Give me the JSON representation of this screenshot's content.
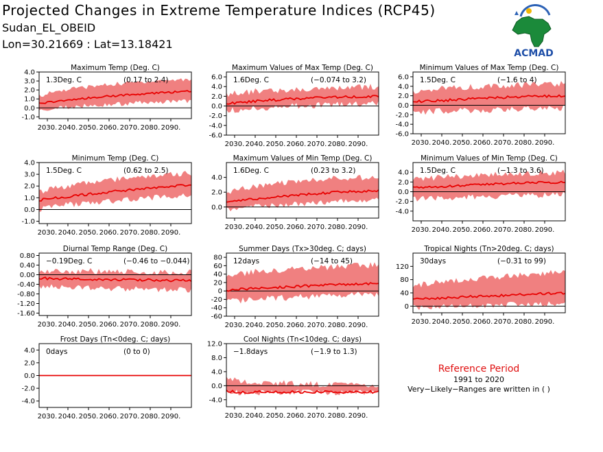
{
  "header": {
    "title": "Projected Changes in Extreme Temperature Indices (RCP45)",
    "subtitle": "Sudan_EL_OBEID",
    "location": "Lon=30.21669 : Lat=13.18421"
  },
  "logo": {
    "text": "ACMAD",
    "icon": "africa-map-logo"
  },
  "colors": {
    "band": "#f08080",
    "line": "#e80000",
    "zero_line": "#000000",
    "ref_text": "#e01010"
  },
  "reference": {
    "title": "Reference Period",
    "years": "1991 to 2020",
    "note": "Very−Likely−Ranges are written in ( )"
  },
  "chart_data": [
    {
      "type": "area",
      "title": "Maximum Temp (Deg. C)",
      "change": "1.3Deg. C",
      "range": "(0.17 to 2.4)",
      "ylim": [
        -1.2,
        4.0
      ],
      "yticks": [
        "-1.0",
        "0.0",
        "1.0",
        "2.0",
        "3.0",
        "4.0"
      ],
      "xticks": [
        "2030.",
        "2040.",
        "2050.",
        "2060.",
        "2070.",
        "2080.",
        "2090."
      ],
      "xlim": [
        2026,
        2100
      ],
      "series": [
        {
          "role": "median",
          "x": [
            2026,
            2040,
            2060,
            2080,
            2100
          ],
          "values": [
            0.5,
            0.9,
            1.3,
            1.6,
            1.9
          ]
        },
        {
          "role": "upper",
          "x": [
            2026,
            2040,
            2060,
            2080,
            2100
          ],
          "values": [
            1.4,
            2.1,
            2.6,
            3.0,
            3.2
          ]
        },
        {
          "role": "lower",
          "x": [
            2026,
            2040,
            2060,
            2080,
            2100
          ],
          "values": [
            -0.3,
            0.1,
            0.4,
            0.6,
            0.8
          ]
        }
      ]
    },
    {
      "type": "area",
      "title": "Maximum Values of Max Temp (Deg. C)",
      "change": "1.6Deg. C",
      "range": "(−0.074 to 3.2)",
      "ylim": [
        -6,
        7
      ],
      "yticks": [
        "-6.0",
        "-4.0",
        "-2.0",
        "0.0",
        "2.0",
        "4.0",
        "6.0"
      ],
      "xticks": [
        "2030.",
        "2040.",
        "2050.",
        "2060.",
        "2070.",
        "2080.",
        "2090."
      ],
      "xlim": [
        2026,
        2100
      ],
      "series": [
        {
          "role": "median",
          "x": [
            2026,
            2040,
            2060,
            2080,
            2100
          ],
          "values": [
            0.5,
            1.0,
            1.5,
            1.8,
            2.0
          ]
        },
        {
          "role": "upper",
          "x": [
            2026,
            2040,
            2060,
            2080,
            2100
          ],
          "values": [
            2.5,
            3.0,
            3.5,
            3.8,
            4.0
          ]
        },
        {
          "role": "lower",
          "x": [
            2026,
            2040,
            2060,
            2080,
            2100
          ],
          "values": [
            -1.0,
            -0.5,
            0.0,
            0.3,
            0.5
          ]
        }
      ]
    },
    {
      "type": "area",
      "title": "Minimum Values of Max Temp (Deg. C)",
      "change": "1.5Deg. C",
      "range": "(−1.6 to 4)",
      "ylim": [
        -6,
        7
      ],
      "yticks": [
        "-6.0",
        "-4.0",
        "-2.0",
        "0.0",
        "2.0",
        "4.0",
        "6.0"
      ],
      "xticks": [
        "2030.",
        "2040.",
        "2050.",
        "2060.",
        "2070.",
        "2080.",
        "2090."
      ],
      "xlim": [
        2026,
        2100
      ],
      "series": [
        {
          "role": "median",
          "x": [
            2026,
            2040,
            2060,
            2080,
            2100
          ],
          "values": [
            0.8,
            1.0,
            1.5,
            1.8,
            2.0
          ]
        },
        {
          "role": "upper",
          "x": [
            2026,
            2040,
            2060,
            2080,
            2100
          ],
          "values": [
            3.0,
            3.5,
            4.0,
            4.3,
            4.5
          ]
        },
        {
          "role": "lower",
          "x": [
            2026,
            2040,
            2060,
            2080,
            2100
          ],
          "values": [
            -1.5,
            -1.2,
            -1.0,
            -0.8,
            -0.6
          ]
        }
      ]
    },
    {
      "type": "area",
      "title": "Minimum Temp (Deg. C)",
      "change": "1.5Deg. C",
      "range": "(0.62 to 2.5)",
      "ylim": [
        -1.2,
        4.0
      ],
      "yticks": [
        "-1.0",
        "0.0",
        "1.0",
        "2.0",
        "3.0",
        "4.0"
      ],
      "xticks": [
        "2030.",
        "2040.",
        "2050.",
        "2060.",
        "2070.",
        "2080.",
        "2090."
      ],
      "xlim": [
        2026,
        2100
      ],
      "series": [
        {
          "role": "median",
          "x": [
            2026,
            2040,
            2060,
            2080,
            2100
          ],
          "values": [
            0.8,
            1.1,
            1.5,
            1.8,
            2.1
          ]
        },
        {
          "role": "upper",
          "x": [
            2026,
            2040,
            2060,
            2080,
            2100
          ],
          "values": [
            1.5,
            2.0,
            2.5,
            2.9,
            3.1
          ]
        },
        {
          "role": "lower",
          "x": [
            2026,
            2040,
            2060,
            2080,
            2100
          ],
          "values": [
            0.0,
            0.4,
            0.7,
            1.0,
            1.2
          ]
        }
      ]
    },
    {
      "type": "area",
      "title": "Maximum Values of Min Temp (Deg. C)",
      "change": "1.6Deg. C",
      "range": "(0.23 to 3.2)",
      "ylim": [
        -1.5,
        6.0
      ],
      "yticks": [
        "0.0",
        "2.0",
        "4.0"
      ],
      "xticks": [
        "2030.",
        "2040.",
        "2050.",
        "2060.",
        "2070.",
        "2080.",
        "2090."
      ],
      "xlim": [
        2026,
        2100
      ],
      "series": [
        {
          "role": "median",
          "x": [
            2026,
            2040,
            2060,
            2080,
            2100
          ],
          "values": [
            0.7,
            1.1,
            1.6,
            2.0,
            2.2
          ]
        },
        {
          "role": "upper",
          "x": [
            2026,
            2040,
            2060,
            2080,
            2100
          ],
          "values": [
            2.0,
            2.8,
            3.5,
            3.9,
            4.0
          ]
        },
        {
          "role": "lower",
          "x": [
            2026,
            2040,
            2060,
            2080,
            2100
          ],
          "values": [
            -0.3,
            0.1,
            0.4,
            0.7,
            0.9
          ]
        }
      ]
    },
    {
      "type": "area",
      "title": "Minimum Values of Min Temp (Deg. C)",
      "change": "1.5Deg. C",
      "range": "(−1.3 to 3.6)",
      "ylim": [
        -6,
        6
      ],
      "yticks": [
        "-4.0",
        "-2.0",
        "0.0",
        "2.0",
        "4.0"
      ],
      "xticks": [
        "2030.",
        "2040.",
        "2050.",
        "2060.",
        "2070.",
        "2080.",
        "2090."
      ],
      "xlim": [
        2026,
        2100
      ],
      "series": [
        {
          "role": "median",
          "x": [
            2026,
            2040,
            2060,
            2080,
            2100
          ],
          "values": [
            0.8,
            1.0,
            1.5,
            1.8,
            2.0
          ]
        },
        {
          "role": "upper",
          "x": [
            2026,
            2040,
            2060,
            2080,
            2100
          ],
          "values": [
            2.5,
            3.0,
            3.5,
            3.8,
            4.0
          ]
        },
        {
          "role": "lower",
          "x": [
            2026,
            2040,
            2060,
            2080,
            2100
          ],
          "values": [
            -1.5,
            -1.3,
            -1.0,
            -0.8,
            -0.5
          ]
        }
      ]
    },
    {
      "type": "area",
      "title": "Diurnal Temp Range (Deg. C)",
      "change": "−0.19Deg. C",
      "range": "(−0.46 to −0.044)",
      "ylim": [
        -1.7,
        0.9
      ],
      "yticks": [
        "-1.60",
        "-1.20",
        "-0.80",
        "-0.40",
        "0.00",
        "0.40",
        "0.80"
      ],
      "xticks": [
        "2030.",
        "2040.",
        "2050.",
        "2060.",
        "2070.",
        "2080.",
        "2090."
      ],
      "xlim": [
        2026,
        2100
      ],
      "series": [
        {
          "role": "median",
          "x": [
            2026,
            2040,
            2060,
            2080,
            2100
          ],
          "values": [
            -0.15,
            -0.18,
            -0.2,
            -0.22,
            -0.25
          ]
        },
        {
          "role": "upper",
          "x": [
            2026,
            2040,
            2060,
            2080,
            2100
          ],
          "values": [
            0.2,
            0.15,
            0.15,
            0.1,
            0.1
          ]
        },
        {
          "role": "lower",
          "x": [
            2026,
            2040,
            2060,
            2080,
            2100
          ],
          "values": [
            -0.5,
            -0.55,
            -0.6,
            -0.6,
            -0.65
          ]
        }
      ]
    },
    {
      "type": "area",
      "title": "Summer Days (Tx>30deg. C; days)",
      "change": "12days",
      "range": "(−14 to 45)",
      "ylim": [
        -60,
        90
      ],
      "yticks": [
        "-60",
        "-40",
        "-20",
        "0",
        "20",
        "40",
        "60",
        "80"
      ],
      "xticks": [
        "2030.",
        "2040.",
        "2050.",
        "2060.",
        "2070.",
        "2080.",
        "2090."
      ],
      "xlim": [
        2026,
        2100
      ],
      "series": [
        {
          "role": "median",
          "x": [
            2026,
            2040,
            2060,
            2080,
            2100
          ],
          "values": [
            2,
            6,
            11,
            15,
            18
          ]
        },
        {
          "role": "upper",
          "x": [
            2026,
            2040,
            2060,
            2080,
            2100
          ],
          "values": [
            35,
            45,
            52,
            58,
            62
          ]
        },
        {
          "role": "lower",
          "x": [
            2026,
            2040,
            2060,
            2080,
            2100
          ],
          "values": [
            -25,
            -20,
            -15,
            -10,
            -8
          ]
        }
      ]
    },
    {
      "type": "area",
      "title": "Tropical Nights (Tn>20deg. C; days)",
      "change": "30days",
      "range": "(−0.31 to 99)",
      "ylim": [
        -20,
        160
      ],
      "yticks": [
        "0",
        "40",
        "80",
        "120"
      ],
      "xticks": [
        "2030.",
        "2040.",
        "2050.",
        "2060.",
        "2070.",
        "2080.",
        "2090."
      ],
      "xlim": [
        2026,
        2100
      ],
      "series": [
        {
          "role": "median",
          "x": [
            2026,
            2040,
            2060,
            2080,
            2100
          ],
          "values": [
            20,
            25,
            30,
            35,
            40
          ]
        },
        {
          "role": "upper",
          "x": [
            2026,
            2040,
            2060,
            2080,
            2100
          ],
          "values": [
            60,
            75,
            85,
            95,
            105
          ]
        },
        {
          "role": "lower",
          "x": [
            2026,
            2040,
            2060,
            2080,
            2100
          ],
          "values": [
            -5,
            0,
            2,
            5,
            8
          ]
        }
      ]
    },
    {
      "type": "area",
      "title": "Frost Days (Tn<0deg. C; days)",
      "change": "0days",
      "range": "(0 to 0)",
      "ylim": [
        -5,
        5
      ],
      "yticks": [
        "-4.0",
        "-2.0",
        "0.0",
        "2.0",
        "4.0"
      ],
      "xticks": [
        "2030.",
        "2040.",
        "2050.",
        "2060.",
        "2070.",
        "2080.",
        "2090."
      ],
      "xlim": [
        2026,
        2100
      ],
      "series": [
        {
          "role": "median",
          "x": [
            2026,
            2100
          ],
          "values": [
            0,
            0
          ]
        },
        {
          "role": "upper",
          "x": [
            2026,
            2100
          ],
          "values": [
            0,
            0
          ]
        },
        {
          "role": "lower",
          "x": [
            2026,
            2100
          ],
          "values": [
            0,
            0
          ]
        }
      ]
    },
    {
      "type": "area",
      "title": "Cool Nights (Tn<10deg. C; days)",
      "change": "−1.8days",
      "range": "(−1.9 to 1.3)",
      "ylim": [
        -6,
        12
      ],
      "yticks": [
        "-4.0",
        "0.0",
        "4.0",
        "8.0",
        "12.0"
      ],
      "xticks": [
        "2030.",
        "2040.",
        "2050.",
        "2060.",
        "2070.",
        "2080.",
        "2090."
      ],
      "xlim": [
        2026,
        2100
      ],
      "series": [
        {
          "role": "median",
          "x": [
            2026,
            2030,
            2100
          ],
          "values": [
            -1.5,
            -1.8,
            -1.8
          ]
        },
        {
          "role": "upper",
          "x": [
            2026,
            2030,
            2060,
            2100
          ],
          "values": [
            3,
            1.5,
            0.5,
            0.3
          ]
        },
        {
          "role": "lower",
          "x": [
            2026,
            2100
          ],
          "values": [
            -1.9,
            -1.9
          ]
        }
      ]
    }
  ]
}
